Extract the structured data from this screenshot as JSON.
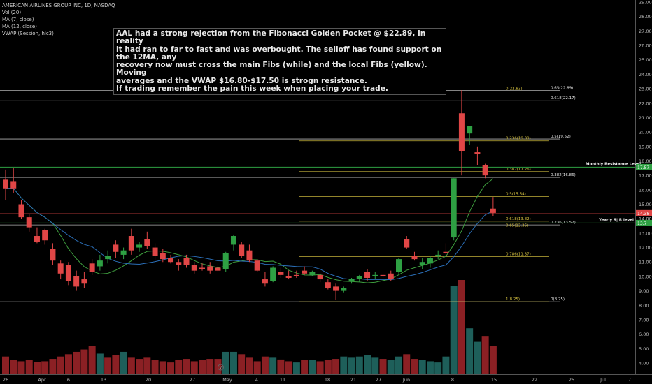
{
  "header": {
    "title": "AMERICAN AIRLINES GROUP INC, 1D, NASDAQ",
    "indicators": [
      "Vol (20)",
      "MA (7, close)",
      "MA (12, close)",
      "VWAP (Session, hlc3)"
    ]
  },
  "annotation": {
    "lines": [
      "AAL had a strong rejection from the Fibonacci Golden Pocket @ $22.89, in reality",
      "it had ran to far to fast and was overbought. The selloff has found support on the 12MA, any",
      "recovery now must cross the main Fibs (while) and the local Fibs (yellow). Moving",
      "averages and the VWAP $16.80-$17.50 is strogn resistance.",
      "If trading remember the pain this week when placing your trade."
    ]
  },
  "colors": {
    "up": "#2ea043",
    "down": "#e04646",
    "vol_up": "#1e5f5a",
    "vol_down": "#8b2024",
    "fib_main": "#cfcfcf",
    "fib_local": "#d8c441",
    "ma7": "#3e9e3e",
    "ma12": "#2b6fb8",
    "support": "#2ea043"
  },
  "chart_data": {
    "type": "candlestick",
    "y_axis": {
      "ticks": [
        "4.00",
        "5.00",
        "6.00",
        "7.00",
        "8.00",
        "9.00",
        "10.00",
        "11.00",
        "12.00",
        "13.00",
        "14.00",
        "15.00",
        "16.00",
        "17.00",
        "18.00",
        "19.00",
        "20.00",
        "21.00",
        "22.00",
        "23.00",
        "24.00",
        "25.00",
        "26.00",
        "27.00",
        "28.00",
        "29.00"
      ],
      "range": [
        3.5,
        29.2
      ]
    },
    "x_axis": {
      "ticks": [
        "26",
        "Apr",
        "6",
        "13",
        "20",
        "27",
        "May",
        "4",
        "11",
        "18",
        "21",
        "27",
        "Jun",
        "8",
        "15",
        "22",
        "25",
        "Jul",
        "7"
      ]
    },
    "candles": [
      {
        "o": 16.7,
        "h": 17.4,
        "l": 15.3,
        "c": 16.1
      },
      {
        "o": 16.6,
        "h": 17.5,
        "l": 15.8,
        "c": 16.1
      },
      {
        "o": 15.0,
        "h": 15.3,
        "l": 14.0,
        "c": 14.1
      },
      {
        "o": 14.1,
        "h": 14.3,
        "l": 13.1,
        "c": 13.4
      },
      {
        "o": 12.8,
        "h": 13.4,
        "l": 12.3,
        "c": 12.4
      },
      {
        "o": 13.2,
        "h": 13.3,
        "l": 12.2,
        "c": 12.5
      },
      {
        "o": 11.9,
        "h": 12.3,
        "l": 10.8,
        "c": 11.1
      },
      {
        "o": 10.9,
        "h": 11.1,
        "l": 9.8,
        "c": 10.2
      },
      {
        "o": 10.8,
        "h": 11.0,
        "l": 9.4,
        "c": 9.7
      },
      {
        "o": 10.0,
        "h": 10.4,
        "l": 9.0,
        "c": 9.3
      },
      {
        "o": 9.8,
        "h": 10.3,
        "l": 9.2,
        "c": 9.5
      },
      {
        "o": 10.9,
        "h": 11.2,
        "l": 10.1,
        "c": 10.3
      },
      {
        "o": 10.7,
        "h": 11.5,
        "l": 10.4,
        "c": 11.1
      },
      {
        "o": 11.2,
        "h": 11.8,
        "l": 10.9,
        "c": 11.4
      },
      {
        "o": 12.2,
        "h": 12.5,
        "l": 11.3,
        "c": 11.7
      },
      {
        "o": 11.5,
        "h": 12.0,
        "l": 11.2,
        "c": 11.8
      },
      {
        "o": 12.8,
        "h": 13.3,
        "l": 11.5,
        "c": 11.8
      },
      {
        "o": 12.0,
        "h": 12.4,
        "l": 11.7,
        "c": 12.2
      },
      {
        "o": 12.6,
        "h": 13.1,
        "l": 11.9,
        "c": 12.1
      },
      {
        "o": 12.0,
        "h": 12.3,
        "l": 11.1,
        "c": 11.4
      },
      {
        "o": 11.6,
        "h": 11.9,
        "l": 11.0,
        "c": 11.2
      },
      {
        "o": 11.3,
        "h": 11.5,
        "l": 10.9,
        "c": 11.0
      },
      {
        "o": 11.0,
        "h": 11.2,
        "l": 10.4,
        "c": 10.8
      },
      {
        "o": 11.3,
        "h": 11.5,
        "l": 10.6,
        "c": 10.8
      },
      {
        "o": 10.8,
        "h": 11.0,
        "l": 10.2,
        "c": 10.4
      },
      {
        "o": 10.6,
        "h": 10.9,
        "l": 10.4,
        "c": 10.5
      },
      {
        "o": 10.7,
        "h": 11.0,
        "l": 10.2,
        "c": 10.4
      },
      {
        "o": 10.6,
        "h": 10.9,
        "l": 10.3,
        "c": 10.4
      },
      {
        "o": 10.5,
        "h": 11.7,
        "l": 10.3,
        "c": 11.6
      },
      {
        "o": 12.2,
        "h": 12.9,
        "l": 11.8,
        "c": 12.8
      },
      {
        "o": 12.2,
        "h": 12.4,
        "l": 11.3,
        "c": 11.4
      },
      {
        "o": 11.8,
        "h": 12.2,
        "l": 11.0,
        "c": 11.1
      },
      {
        "o": 11.1,
        "h": 11.2,
        "l": 10.3,
        "c": 10.4
      },
      {
        "o": 9.8,
        "h": 10.3,
        "l": 9.3,
        "c": 9.5
      },
      {
        "o": 9.7,
        "h": 10.7,
        "l": 9.6,
        "c": 10.6
      },
      {
        "o": 10.3,
        "h": 10.6,
        "l": 9.9,
        "c": 10.1
      },
      {
        "o": 10.0,
        "h": 10.4,
        "l": 9.8,
        "c": 9.9
      },
      {
        "o": 10.1,
        "h": 10.4,
        "l": 9.9,
        "c": 10.0
      },
      {
        "o": 10.4,
        "h": 10.7,
        "l": 10.1,
        "c": 10.2
      },
      {
        "o": 10.1,
        "h": 10.4,
        "l": 10.0,
        "c": 10.3
      },
      {
        "o": 10.1,
        "h": 10.2,
        "l": 9.6,
        "c": 9.8
      },
      {
        "o": 9.6,
        "h": 9.8,
        "l": 9.1,
        "c": 9.2
      },
      {
        "o": 9.3,
        "h": 9.5,
        "l": 8.4,
        "c": 9.0
      },
      {
        "o": 9.0,
        "h": 9.3,
        "l": 8.9,
        "c": 9.2
      },
      {
        "o": 9.7,
        "h": 9.9,
        "l": 9.5,
        "c": 9.8
      },
      {
        "o": 9.8,
        "h": 10.1,
        "l": 9.6,
        "c": 10.0
      },
      {
        "o": 10.3,
        "h": 10.5,
        "l": 9.7,
        "c": 9.9
      },
      {
        "o": 10.0,
        "h": 10.3,
        "l": 9.8,
        "c": 10.1
      },
      {
        "o": 10.1,
        "h": 10.2,
        "l": 9.9,
        "c": 10.0
      },
      {
        "o": 10.2,
        "h": 10.4,
        "l": 9.7,
        "c": 9.8
      },
      {
        "o": 10.3,
        "h": 11.3,
        "l": 10.2,
        "c": 11.2
      },
      {
        "o": 12.6,
        "h": 12.8,
        "l": 11.9,
        "c": 12.0
      },
      {
        "o": 11.4,
        "h": 11.7,
        "l": 11.1,
        "c": 11.2
      },
      {
        "o": 10.8,
        "h": 11.3,
        "l": 10.5,
        "c": 11.0
      },
      {
        "o": 10.9,
        "h": 11.4,
        "l": 10.6,
        "c": 11.3
      },
      {
        "o": 11.4,
        "h": 11.8,
        "l": 11.2,
        "c": 11.5
      },
      {
        "o": 11.7,
        "h": 12.3,
        "l": 11.4,
        "c": 11.6
      },
      {
        "o": 12.7,
        "h": 16.8,
        "l": 12.5,
        "c": 16.8
      },
      {
        "o": 21.3,
        "h": 22.9,
        "l": 17.0,
        "c": 18.7
      },
      {
        "o": 19.9,
        "h": 20.4,
        "l": 19.1,
        "c": 20.4
      },
      {
        "o": 18.6,
        "h": 19.0,
        "l": 17.7,
        "c": 18.5
      },
      {
        "o": 17.7,
        "h": 17.8,
        "l": 16.8,
        "c": 17.0
      },
      {
        "o": 14.7,
        "h": 15.5,
        "l": 14.2,
        "c": 14.4
      }
    ],
    "volume": [
      {
        "v": 30,
        "up": false
      },
      {
        "v": 24,
        "up": false
      },
      {
        "v": 22,
        "up": false
      },
      {
        "v": 24,
        "up": false
      },
      {
        "v": 21,
        "up": false
      },
      {
        "v": 22,
        "up": false
      },
      {
        "v": 26,
        "up": false
      },
      {
        "v": 30,
        "up": false
      },
      {
        "v": 34,
        "up": false
      },
      {
        "v": 38,
        "up": false
      },
      {
        "v": 42,
        "up": false
      },
      {
        "v": 48,
        "up": false
      },
      {
        "v": 35,
        "up": true
      },
      {
        "v": 28,
        "up": false
      },
      {
        "v": 33,
        "up": false
      },
      {
        "v": 38,
        "up": true
      },
      {
        "v": 28,
        "up": false
      },
      {
        "v": 26,
        "up": false
      },
      {
        "v": 28,
        "up": false
      },
      {
        "v": 24,
        "up": false
      },
      {
        "v": 22,
        "up": false
      },
      {
        "v": 20,
        "up": false
      },
      {
        "v": 24,
        "up": false
      },
      {
        "v": 26,
        "up": false
      },
      {
        "v": 22,
        "up": false
      },
      {
        "v": 24,
        "up": false
      },
      {
        "v": 26,
        "up": false
      },
      {
        "v": 26,
        "up": false
      },
      {
        "v": 38,
        "up": true
      },
      {
        "v": 38,
        "up": true
      },
      {
        "v": 34,
        "up": false
      },
      {
        "v": 28,
        "up": false
      },
      {
        "v": 22,
        "up": false
      },
      {
        "v": 30,
        "up": false
      },
      {
        "v": 28,
        "up": true
      },
      {
        "v": 25,
        "up": false
      },
      {
        "v": 22,
        "up": false
      },
      {
        "v": 20,
        "up": true
      },
      {
        "v": 24,
        "up": false
      },
      {
        "v": 24,
        "up": true
      },
      {
        "v": 22,
        "up": false
      },
      {
        "v": 24,
        "up": false
      },
      {
        "v": 26,
        "up": false
      },
      {
        "v": 30,
        "up": true
      },
      {
        "v": 28,
        "up": true
      },
      {
        "v": 30,
        "up": true
      },
      {
        "v": 32,
        "up": true
      },
      {
        "v": 28,
        "up": true
      },
      {
        "v": 26,
        "up": false
      },
      {
        "v": 24,
        "up": true
      },
      {
        "v": 30,
        "up": true
      },
      {
        "v": 34,
        "up": false
      },
      {
        "v": 26,
        "up": false
      },
      {
        "v": 24,
        "up": true
      },
      {
        "v": 22,
        "up": true
      },
      {
        "v": 20,
        "up": true
      },
      {
        "v": 30,
        "up": true
      },
      {
        "v": 150,
        "up": true
      },
      {
        "v": 160,
        "up": false
      },
      {
        "v": 78,
        "up": true
      },
      {
        "v": 55,
        "up": true
      },
      {
        "v": 65,
        "up": false
      },
      {
        "v": 48,
        "up": false
      }
    ],
    "fib_main": [
      {
        "label": "0.65(22.89)",
        "price": 22.89
      },
      {
        "label": "0.618(22.17)",
        "price": 22.17
      },
      {
        "label": "0.5(19.52)",
        "price": 19.52
      },
      {
        "label": "0.382(16.86)",
        "price": 16.86
      },
      {
        "label": "0.236(13.57)",
        "price": 13.57
      },
      {
        "label": "0(8.25)",
        "price": 8.25
      }
    ],
    "fib_local": [
      {
        "label": "0(22.83)",
        "price": 22.83
      },
      {
        "label": "0.236(19.39)",
        "price": 19.39
      },
      {
        "label": "0.382(17.26)",
        "price": 17.26
      },
      {
        "label": "0.5(15.54)",
        "price": 15.54
      },
      {
        "label": "0.618(13.82)",
        "price": 13.82
      },
      {
        "label": "0.65(13.35)",
        "price": 13.35
      },
      {
        "label": "0.786(11.37)",
        "price": 11.37
      },
      {
        "label": "1(8.25)",
        "price": 8.25
      }
    ],
    "levels": [
      {
        "label": "Monthly Resistance Level",
        "price": 17.57,
        "tag": "17.57"
      },
      {
        "label": "Yearly S| R level",
        "price": 13.7,
        "tag": "13.7"
      }
    ],
    "last_price": {
      "tag": "14.38",
      "price": 14.38
    },
    "vol_marker": "V"
  }
}
